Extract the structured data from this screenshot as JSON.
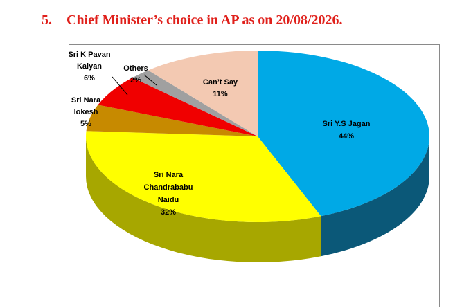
{
  "header": {
    "number": "5.",
    "title": "Chief Minister’s choice in AP as on 20/08/2026."
  },
  "colors": {
    "title": "#e0201b",
    "frame": "#8a8a8a"
  },
  "chart_data": {
    "type": "pie",
    "style": "3d",
    "title": "",
    "legend": "none",
    "slices": [
      {
        "name": "Sri Y.S Jagan",
        "value": 44,
        "label_lines": [
          "Sri Y.S Jagan",
          "44%"
        ],
        "color": "#00a9e6",
        "side_color": "#0b5878"
      },
      {
        "name": "Sri Nara Chandrababu Naidu",
        "value": 32,
        "label_lines": [
          "Sri Nara",
          "Chandrababu",
          "Naidu",
          "32%"
        ],
        "color": "#ffff00",
        "side_color": "#a7a700"
      },
      {
        "name": "Sri Nara lokesh",
        "value": 5,
        "label_lines": [
          "Sri Nara",
          "lokesh",
          "5%"
        ],
        "color": "#c78a00",
        "side_color": "#8d5b00"
      },
      {
        "name": "Sri K Pavan Kalyan",
        "value": 6,
        "label_lines": [
          "Sri K Pavan",
          "Kalyan",
          "6%"
        ],
        "color": "#f00000",
        "side_color": "#9a0000"
      },
      {
        "name": "Others",
        "value": 2,
        "label_lines": [
          "Others",
          "2%"
        ],
        "color": "#a0a0a0",
        "side_color": "#6a6a6a"
      },
      {
        "name": "Can’t Say",
        "value": 11,
        "label_lines": [
          "Can’t Say",
          "11%"
        ],
        "color": "#f3c9b2",
        "side_color": "#b79585"
      }
    ]
  }
}
